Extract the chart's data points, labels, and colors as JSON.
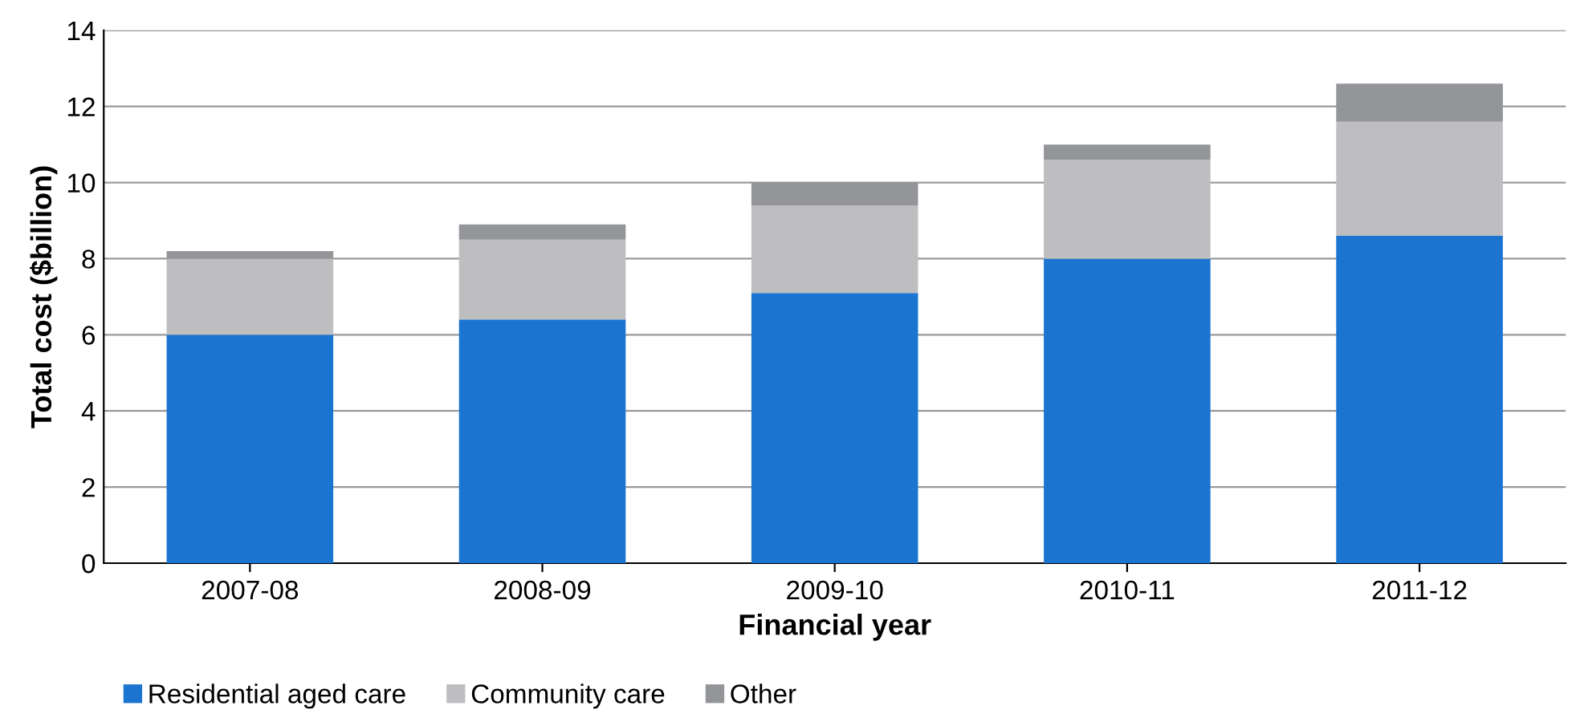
{
  "chart_data": {
    "type": "bar",
    "stacked": true,
    "xlabel": "Financial year",
    "ylabel": "Total cost ($billion)",
    "categories": [
      "2007-08",
      "2008-09",
      "2009-10",
      "2010-11",
      "2011-12"
    ],
    "series": [
      {
        "name": "Residential aged care",
        "color": "#1b75d0",
        "values": [
          6.0,
          6.4,
          7.1,
          8.0,
          8.6
        ]
      },
      {
        "name": "Community care",
        "color": "#bebec1",
        "values": [
          2.0,
          2.1,
          2.3,
          2.6,
          3.0
        ]
      },
      {
        "name": "Other",
        "color": "#939598",
        "values": [
          0.2,
          0.4,
          0.6,
          0.4,
          1.0
        ]
      }
    ],
    "ylim": [
      0,
      14
    ],
    "yticks": [
      0,
      2,
      4,
      6,
      8,
      10,
      12,
      14
    ],
    "grid": "y",
    "legend": "bottom left"
  }
}
